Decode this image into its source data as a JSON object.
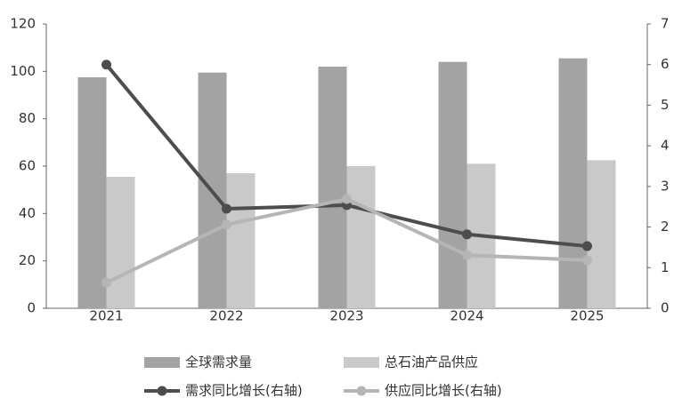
{
  "chart_data": {
    "type": "bar-line",
    "categories": [
      "2021",
      "2022",
      "2023",
      "2024",
      "2025"
    ],
    "series": [
      {
        "name": "全球需求量",
        "type": "bar",
        "color": "#a3a3a3",
        "values": [
          97.5,
          99.5,
          102,
          104,
          105.5
        ]
      },
      {
        "name": "总石油产品供应",
        "type": "bar",
        "color": "#c9c9c9",
        "values": [
          55.5,
          57,
          60,
          61,
          62.5
        ]
      },
      {
        "name": "需求同比增长(右轴)",
        "type": "line",
        "axis": "y2",
        "color": "#4d4d4d",
        "values": [
          6.0,
          2.45,
          2.54,
          1.82,
          1.53
        ]
      },
      {
        "name": "供应同比增长(右轴)",
        "type": "line",
        "axis": "y2",
        "color": "#b5b5b5",
        "values": [
          0.63,
          2.06,
          2.69,
          1.31,
          1.18
        ]
      }
    ],
    "ylim": [
      0,
      120
    ],
    "yticks": [
      0,
      20,
      40,
      60,
      80,
      100,
      120
    ],
    "y2lim": [
      0,
      7
    ],
    "y2ticks": [
      0,
      1,
      2,
      3,
      4,
      5,
      6,
      7
    ],
    "grid": false
  }
}
